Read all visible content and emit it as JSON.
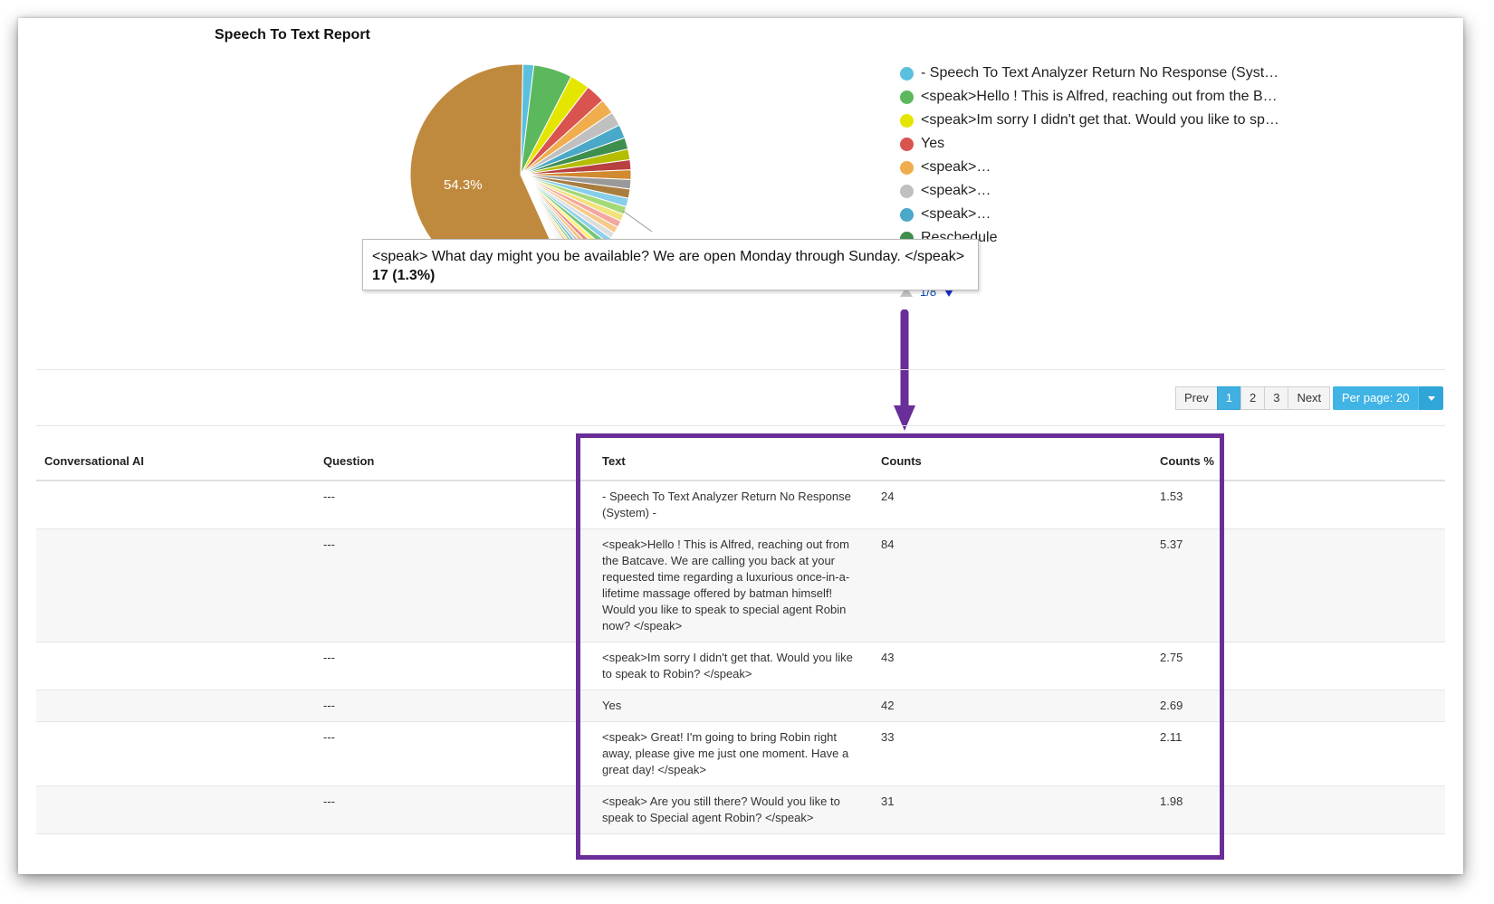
{
  "report": {
    "title": "Speech To Text Report"
  },
  "chart_data": {
    "type": "pie",
    "title": "Speech To Text Report",
    "slice_label": "54.3%",
    "slices": [
      {
        "label": "- Speech To Text Analyzer Return No Response (System) -",
        "value": 1.53,
        "color": "#5bc0de"
      },
      {
        "label": "<speak>Hello ! This is Alfred, reaching out from the Batcave. We are calling you back at your requested time regarding a luxurious once-in-a-lifetime massage offered by batman himself! Would you like to speak to special agent Robin now? </speak>",
        "value": 5.37,
        "color": "#5cb85c"
      },
      {
        "label": "<speak>Im sorry I didn't get that. Would you like to speak to Robin? </speak>",
        "value": 2.75,
        "color": "#e5e600"
      },
      {
        "label": "Yes",
        "value": 2.69,
        "color": "#d9534f"
      },
      {
        "label": "<speak> Great! I'm going to bring Robin right away, please give me just one moment. Have a great day! </speak>",
        "value": 2.11,
        "color": "#f0ad4e"
      },
      {
        "label": "<speak> Are you still there? Would you like to speak to Special agent Robin? </speak>",
        "value": 1.98,
        "color": "#c0c0c0"
      },
      {
        "label": "<speak>",
        "value": 1.9,
        "color": "#4aa8c8"
      },
      {
        "label": "Reschedule",
        "value": 1.6,
        "color": "#3e8e4e"
      },
      {
        "label": "",
        "value": 1.5,
        "color": "#b5bd00"
      },
      {
        "label": "",
        "value": 1.4,
        "color": "#b94040"
      },
      {
        "label": "",
        "value": 1.35,
        "color": "#d08a30"
      },
      {
        "label": "",
        "value": 1.3,
        "color": "#999999"
      },
      {
        "label": "<speak> What day might you be available? We are open Monday through Sunday. </speak>",
        "value": 1.3,
        "color": "#a87d3e"
      },
      {
        "label": "",
        "value": 1.2,
        "color": "#87ceeb"
      },
      {
        "label": "",
        "value": 1.1,
        "color": "#a3d977"
      },
      {
        "label": "",
        "value": 1.0,
        "color": "#f2e27a"
      },
      {
        "label": "",
        "value": 0.95,
        "color": "#f4a6a0"
      },
      {
        "label": "",
        "value": 0.9,
        "color": "#f7c98a"
      },
      {
        "label": "",
        "value": 0.85,
        "color": "#dddddd"
      },
      {
        "label": "",
        "value": 0.8,
        "color": "#8fd1ea"
      },
      {
        "label": "",
        "value": 0.75,
        "color": "#76c776"
      },
      {
        "label": "",
        "value": 0.7,
        "color": "#fdf27a"
      },
      {
        "label": "",
        "value": 0.65,
        "color": "#ea8a86"
      },
      {
        "label": "",
        "value": 0.6,
        "color": "#f5c27d"
      },
      {
        "label": "",
        "value": 0.55,
        "color": "#cccccc"
      },
      {
        "label": "",
        "value": 0.5,
        "color": "#6fbcd8"
      },
      {
        "label": "",
        "value": 0.45,
        "color": "#90c990"
      },
      {
        "label": "",
        "value": 0.4,
        "color": "#eee86a"
      },
      {
        "label": "",
        "value": 0.35,
        "color": "#e89a96"
      },
      {
        "label": "",
        "value": 0.3,
        "color": "#f7d6a0"
      },
      {
        "label": "",
        "value": 0.3,
        "color": "#e4e4e4"
      },
      {
        "label": "",
        "value": 0.25,
        "color": "#a5d9ec"
      },
      {
        "label": "",
        "value": 0.25,
        "color": "#bde2a3"
      },
      {
        "label": "",
        "value": 0.2,
        "color": "#f2ec9a"
      },
      {
        "label": "",
        "value": 0.2,
        "color": "#f0b8b4"
      },
      {
        "label": "",
        "value": 0.2,
        "color": "#f9dcb4"
      },
      {
        "label": "",
        "value": 0.15,
        "color": "#eaeaea"
      },
      {
        "label": "",
        "value": 0.15,
        "color": "#b8e2f2"
      },
      {
        "label": "",
        "value": 0.15,
        "color": "#cfe9c0"
      },
      {
        "label": "",
        "value": 0.1,
        "color": "#f5f0b0"
      },
      {
        "label": "",
        "value": 0.1,
        "color": "#f4c8c6"
      },
      {
        "label": "",
        "value": 54.3,
        "color": "#c08a3e"
      }
    ]
  },
  "legend": {
    "items": [
      {
        "label": "- Speech To Text Analyzer Return No Response (Syst…",
        "color": "#5bc0de"
      },
      {
        "label": "<speak>Hello ! This is Alfred, reaching out from the B…",
        "color": "#5cb85c"
      },
      {
        "label": "<speak>Im sorry I didn't get that. Would you like to sp…",
        "color": "#e5e600"
      },
      {
        "label": "Yes",
        "color": "#d9534f"
      },
      {
        "label": "<speak>…",
        "color": "#f0ad4e"
      },
      {
        "label": "<speak>…",
        "color": "#c0c0c0"
      },
      {
        "label": "<speak>…",
        "color": "#4aa8c8"
      },
      {
        "label": "Reschedule",
        "color": "#3e8e4e"
      }
    ],
    "page_indicator": "1/8"
  },
  "tooltip": {
    "text": "<speak> What day might you be available? We are open Monday through Sunday. </speak>",
    "value": "17 (1.3%)"
  },
  "pagination": {
    "prev": "Prev",
    "pages": [
      "1",
      "2",
      "3"
    ],
    "active_page": "1",
    "next": "Next",
    "per_page": "Per page: 20"
  },
  "table": {
    "headers": [
      "Conversational AI",
      "Question",
      "Text",
      "Counts",
      "Counts %"
    ],
    "rows": [
      {
        "ai": "",
        "question": "---",
        "text": "- Speech To Text Analyzer Return No Response (System) -",
        "count": "24",
        "percent": "1.53"
      },
      {
        "ai": "",
        "question": "---",
        "text": "<speak>Hello ! This is Alfred, reaching out from the Batcave. We are calling you back at your requested time regarding a luxurious once-in-a-lifetime massage offered by batman himself! Would you like to speak to special agent Robin now? </speak>",
        "count": "84",
        "percent": "5.37"
      },
      {
        "ai": "",
        "question": "---",
        "text": "<speak>Im sorry I didn't get that. Would you like to speak to Robin? </speak>",
        "count": "43",
        "percent": "2.75"
      },
      {
        "ai": "",
        "question": "---",
        "text": "Yes",
        "count": "42",
        "percent": "2.69"
      },
      {
        "ai": "",
        "question": "---",
        "text": "<speak> Great! I'm going to bring Robin right away, please give me just one moment. Have a great day! </speak>",
        "count": "33",
        "percent": "2.11"
      },
      {
        "ai": "",
        "question": "---",
        "text": "<speak> Are you still there? Would you like to speak to Special agent Robin? </speak>",
        "count": "31",
        "percent": "1.98"
      }
    ]
  },
  "colors": {
    "highlight": "#6a2e99",
    "accent": "#40b4e5"
  }
}
